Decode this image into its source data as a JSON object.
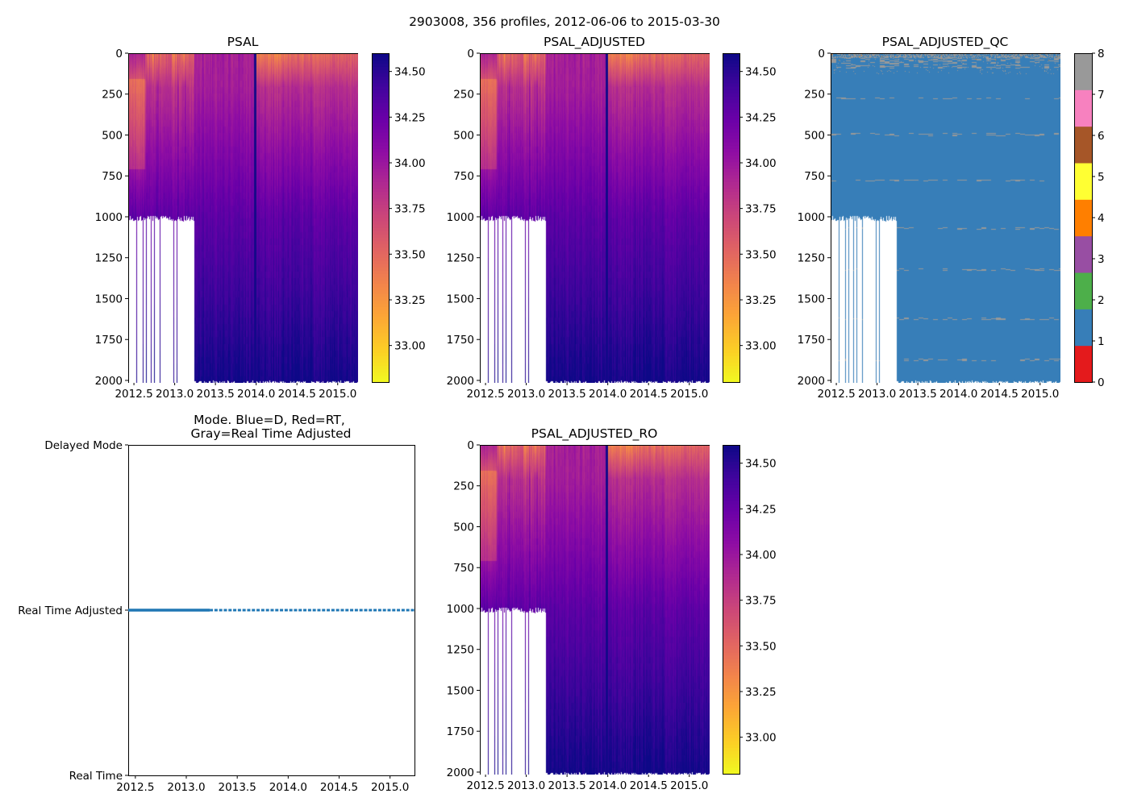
{
  "figure": {
    "suptitle": "2903008, 356 profiles, 2012-06-06 to 2015-03-30"
  },
  "chart_data": [
    {
      "id": "psal",
      "type": "heatmap",
      "title": "PSAL",
      "xlabel": "",
      "ylabel": "",
      "x_ticks": [
        "2012.5",
        "2013.0",
        "2013.5",
        "2014.0",
        "2014.5",
        "2015.0"
      ],
      "y_ticks": [
        "0",
        "250",
        "500",
        "750",
        "1000",
        "1250",
        "1500",
        "1750",
        "2000"
      ],
      "xlim": [
        2012.43,
        2015.24
      ],
      "ylim": [
        2000,
        0
      ],
      "y_inverted": true,
      "colormap": "plasma_r",
      "colorbar": {
        "range": [
          32.8,
          34.6
        ],
        "ticks": [
          "33.00",
          "33.25",
          "33.50",
          "33.75",
          "34.00",
          "34.25",
          "34.50"
        ]
      },
      "features": {
        "shallow_profiles_until": 2013.23,
        "shallow_max_depth": 1000,
        "deep_max_depth": 2000,
        "anomalous_dark_profile_at": 2013.97,
        "surface_salinity_range": [
          33.0,
          33.6
        ],
        "deep_salinity": 34.6
      }
    },
    {
      "id": "psal_adjusted",
      "type": "heatmap",
      "title": "PSAL_ADJUSTED",
      "x_ticks": [
        "2012.5",
        "2013.0",
        "2013.5",
        "2014.0",
        "2014.5",
        "2015.0"
      ],
      "y_ticks": [
        "0",
        "250",
        "500",
        "750",
        "1000",
        "1250",
        "1500",
        "1750",
        "2000"
      ],
      "xlim": [
        2012.43,
        2015.24
      ],
      "ylim": [
        2000,
        0
      ],
      "y_inverted": true,
      "colormap": "plasma_r",
      "colorbar": {
        "range": [
          32.8,
          34.6
        ],
        "ticks": [
          "33.00",
          "33.25",
          "33.50",
          "33.75",
          "34.00",
          "34.25",
          "34.50"
        ]
      }
    },
    {
      "id": "psal_adjusted_qc",
      "type": "heatmap",
      "title": "PSAL_ADJUSTED_QC",
      "x_ticks": [
        "2012.5",
        "2013.0",
        "2013.5",
        "2014.0",
        "2014.5",
        "2015.0"
      ],
      "y_ticks": [
        "0",
        "250",
        "500",
        "750",
        "1000",
        "1250",
        "1500",
        "1750",
        "2000"
      ],
      "xlim": [
        2012.43,
        2015.24
      ],
      "ylim": [
        2000,
        0
      ],
      "y_inverted": true,
      "colormap": "Set1 (discrete)",
      "colorbar": {
        "range": [
          0,
          8
        ],
        "ticks": [
          "0",
          "1",
          "2",
          "3",
          "4",
          "5",
          "6",
          "7",
          "8"
        ],
        "categories": [
          {
            "value": 0,
            "color": "#e41a1c"
          },
          {
            "value": 1,
            "color": "#377eb8"
          },
          {
            "value": 2,
            "color": "#4daf4a"
          },
          {
            "value": 3,
            "color": "#984ea3"
          },
          {
            "value": 4,
            "color": "#ff7f00"
          },
          {
            "value": 5,
            "color": "#ffff33"
          },
          {
            "value": 6,
            "color": "#a65628"
          },
          {
            "value": 7,
            "color": "#f781bf"
          },
          {
            "value": 8,
            "color": "#999999"
          }
        ]
      },
      "dominant_flag": 1,
      "secondary_flags": [
        8,
        4
      ],
      "qc8_bands_depth": [
        10,
        230,
        260,
        300,
        480,
        530,
        760,
        800,
        1050,
        1100,
        1300,
        1350,
        1600,
        1650,
        1850,
        1900
      ]
    },
    {
      "id": "mode",
      "type": "line",
      "title": "Mode. Blue=D, Red=RT,\nGray=Real Time Adjusted",
      "title_lines": [
        "Mode. Blue=D, Red=RT,",
        "Gray=Real Time Adjusted"
      ],
      "x_ticks": [
        "2012.5",
        "2013.0",
        "2013.5",
        "2014.0",
        "2014.5",
        "2015.0"
      ],
      "xlim": [
        2012.43,
        2015.24
      ],
      "y_ticks": [
        "Real Time",
        "Real Time Adjusted",
        "Delayed Mode"
      ],
      "ylim": [
        0,
        2
      ],
      "series": [
        {
          "name": "mode",
          "color": "#1f77b4",
          "y_value": 1,
          "y_label": "Real Time Adjusted",
          "dense_range": [
            2012.43,
            2013.23
          ],
          "sparse_range": [
            2013.23,
            2015.24
          ]
        }
      ]
    },
    {
      "id": "psal_adjusted_ro",
      "type": "heatmap",
      "title": "PSAL_ADJUSTED_RO",
      "x_ticks": [
        "2012.5",
        "2013.0",
        "2013.5",
        "2014.0",
        "2014.5",
        "2015.0"
      ],
      "y_ticks": [
        "0",
        "250",
        "500",
        "750",
        "1000",
        "1250",
        "1500",
        "1750",
        "2000"
      ],
      "xlim": [
        2012.43,
        2015.24
      ],
      "ylim": [
        2000,
        0
      ],
      "y_inverted": true,
      "colormap": "plasma_r",
      "colorbar": {
        "range": [
          32.8,
          34.6
        ],
        "ticks": [
          "33.00",
          "33.25",
          "33.50",
          "33.75",
          "34.00",
          "34.25",
          "34.50"
        ]
      }
    }
  ]
}
